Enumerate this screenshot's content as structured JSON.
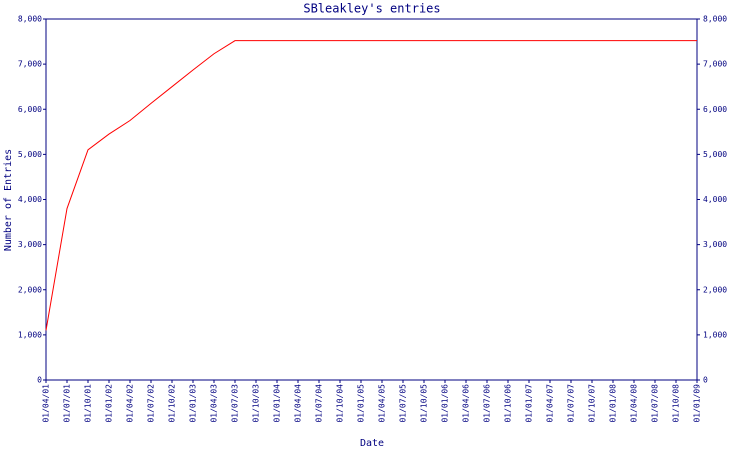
{
  "chart_data": {
    "type": "line",
    "title": "SBleakley's entries",
    "x_label": "Date",
    "y_label": "Number of Entries",
    "categories": [
      "01/04/01",
      "01/07/01",
      "01/10/01",
      "01/01/02",
      "01/04/02",
      "01/07/02",
      "01/10/02",
      "01/01/03",
      "01/04/03",
      "01/07/03",
      "01/10/03",
      "01/01/04",
      "01/04/04",
      "01/07/04",
      "01/10/04",
      "01/01/05",
      "01/04/05",
      "01/07/05",
      "01/10/05",
      "01/01/06",
      "01/04/06",
      "01/07/06",
      "01/10/06",
      "01/01/07",
      "01/04/07",
      "01/07/07",
      "01/10/07",
      "01/01/08",
      "01/04/08",
      "01/07/08",
      "01/10/08",
      "01/01/09"
    ],
    "values": [
      1100,
      3800,
      5100,
      5450,
      5750,
      6130,
      6500,
      6870,
      7230,
      7520,
      7520,
      7520,
      7520,
      7520,
      7520,
      7520,
      7520,
      7520,
      7520,
      7520,
      7520,
      7520,
      7520,
      7520,
      7520,
      7520,
      7520,
      7520,
      7520,
      7520,
      7520,
      7520
    ],
    "color": "#ff0000",
    "ylim": [
      0,
      8000
    ],
    "yticks": [
      0,
      {
        "value": 1000,
        "label": "1,000"
      },
      {
        "value": 2000,
        "label": "2,000"
      },
      {
        "value": 3000,
        "label": "3,000"
      },
      {
        "value": 4000,
        "label": "4,000"
      },
      {
        "value": 5000,
        "label": "5,000"
      },
      {
        "value": 6000,
        "label": "6,000"
      },
      {
        "value": 7000,
        "label": "7,000"
      },
      {
        "value": 8000,
        "label": "8,000"
      }
    ],
    "y2lim": [
      0,
      8000
    ],
    "y2ticks": [
      0,
      {
        "value": 1000,
        "label": "1,000"
      },
      {
        "value": 2000,
        "label": "2,000"
      },
      {
        "value": 3000,
        "label": "3,000"
      },
      {
        "value": 4000,
        "label": "4,000"
      },
      {
        "value": 5000,
        "label": "5,000"
      },
      {
        "value": 6000,
        "label": "6,000"
      },
      {
        "value": 7000,
        "label": "7,000"
      },
      {
        "value": 8000,
        "label": "8,000"
      }
    ],
    "grid": false
  }
}
